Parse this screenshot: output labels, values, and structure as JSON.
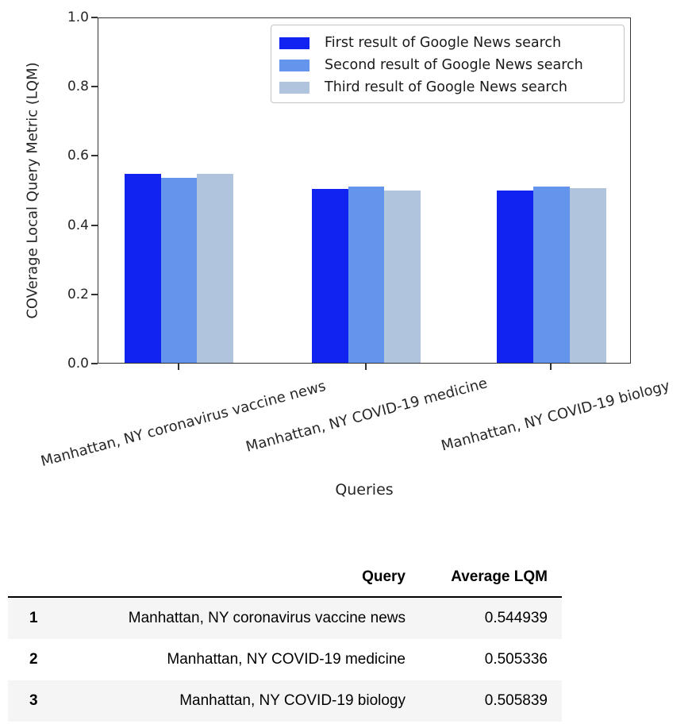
{
  "chart_data": {
    "type": "bar",
    "title": "",
    "xlabel": "Queries",
    "ylabel": "COVerage Local Query Metric (LQM)",
    "ylim": [
      0.0,
      1.0
    ],
    "yticks": [
      0.0,
      0.2,
      0.4,
      0.6,
      0.8,
      1.0
    ],
    "grid": false,
    "legend_position": "upper right",
    "categories": [
      "Manhattan, NY coronavirus vaccine news",
      "Manhattan, NY COVID-19 medicine",
      "Manhattan, NY COVID-19 biology"
    ],
    "series": [
      {
        "name": "First result of Google News search",
        "color": "#1023f0",
        "values": [
          0.549,
          0.504,
          0.5
        ]
      },
      {
        "name": "Second result of Google News search",
        "color": "#6495ed",
        "values": [
          0.538,
          0.512,
          0.512
        ]
      },
      {
        "name": "Third result of Google News search",
        "color": "#b0c4de",
        "values": [
          0.548,
          0.5,
          0.506
        ]
      }
    ]
  },
  "table": {
    "headers": [
      "",
      "Query",
      "Average LQM"
    ],
    "rows": [
      {
        "index": "1",
        "query": "Manhattan, NY coronavirus vaccine news",
        "avg_lqm": "0.544939"
      },
      {
        "index": "2",
        "query": "Manhattan, NY COVID-19 medicine",
        "avg_lqm": "0.505336"
      },
      {
        "index": "3",
        "query": "Manhattan, NY COVID-19 biology",
        "avg_lqm": "0.505839"
      }
    ]
  }
}
